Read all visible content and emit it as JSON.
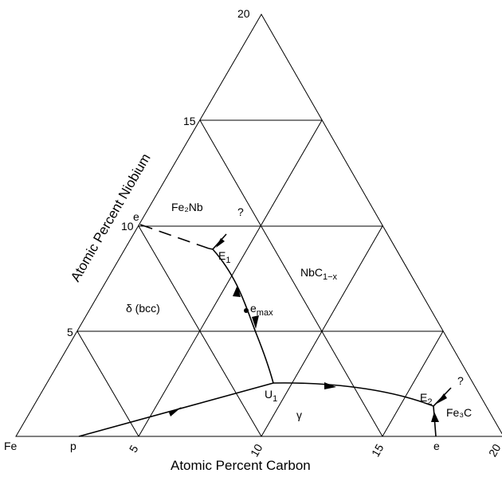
{
  "diagram": {
    "corners": {
      "left": "Fe",
      "top": "20",
      "right": "20"
    },
    "carbon_ticks": [
      "5",
      "10",
      "15",
      "20"
    ],
    "niobium_ticks": [
      "5",
      "10",
      "15",
      "20"
    ],
    "axis_titles": {
      "carbon": "Atomic Percent Carbon",
      "niobium": "Atomic Percent Niobium"
    },
    "phases": {
      "fe2nb": "Fe₂Nb",
      "nbc_base": "NbC",
      "nbc_sub": "1−x",
      "delta": "δ (bcc)",
      "gamma": "γ",
      "fe3c": "Fe₃C"
    },
    "points": {
      "p": "p",
      "e_left": "e",
      "e_bottom": "e",
      "E1_base": "E",
      "E1_sub": "1",
      "E2_base": "E",
      "E2_sub": "2",
      "U1_base": "U",
      "U1_sub": "1",
      "emax_base": "e",
      "emax_sub": "max",
      "q1": "?",
      "q2": "?"
    }
  }
}
